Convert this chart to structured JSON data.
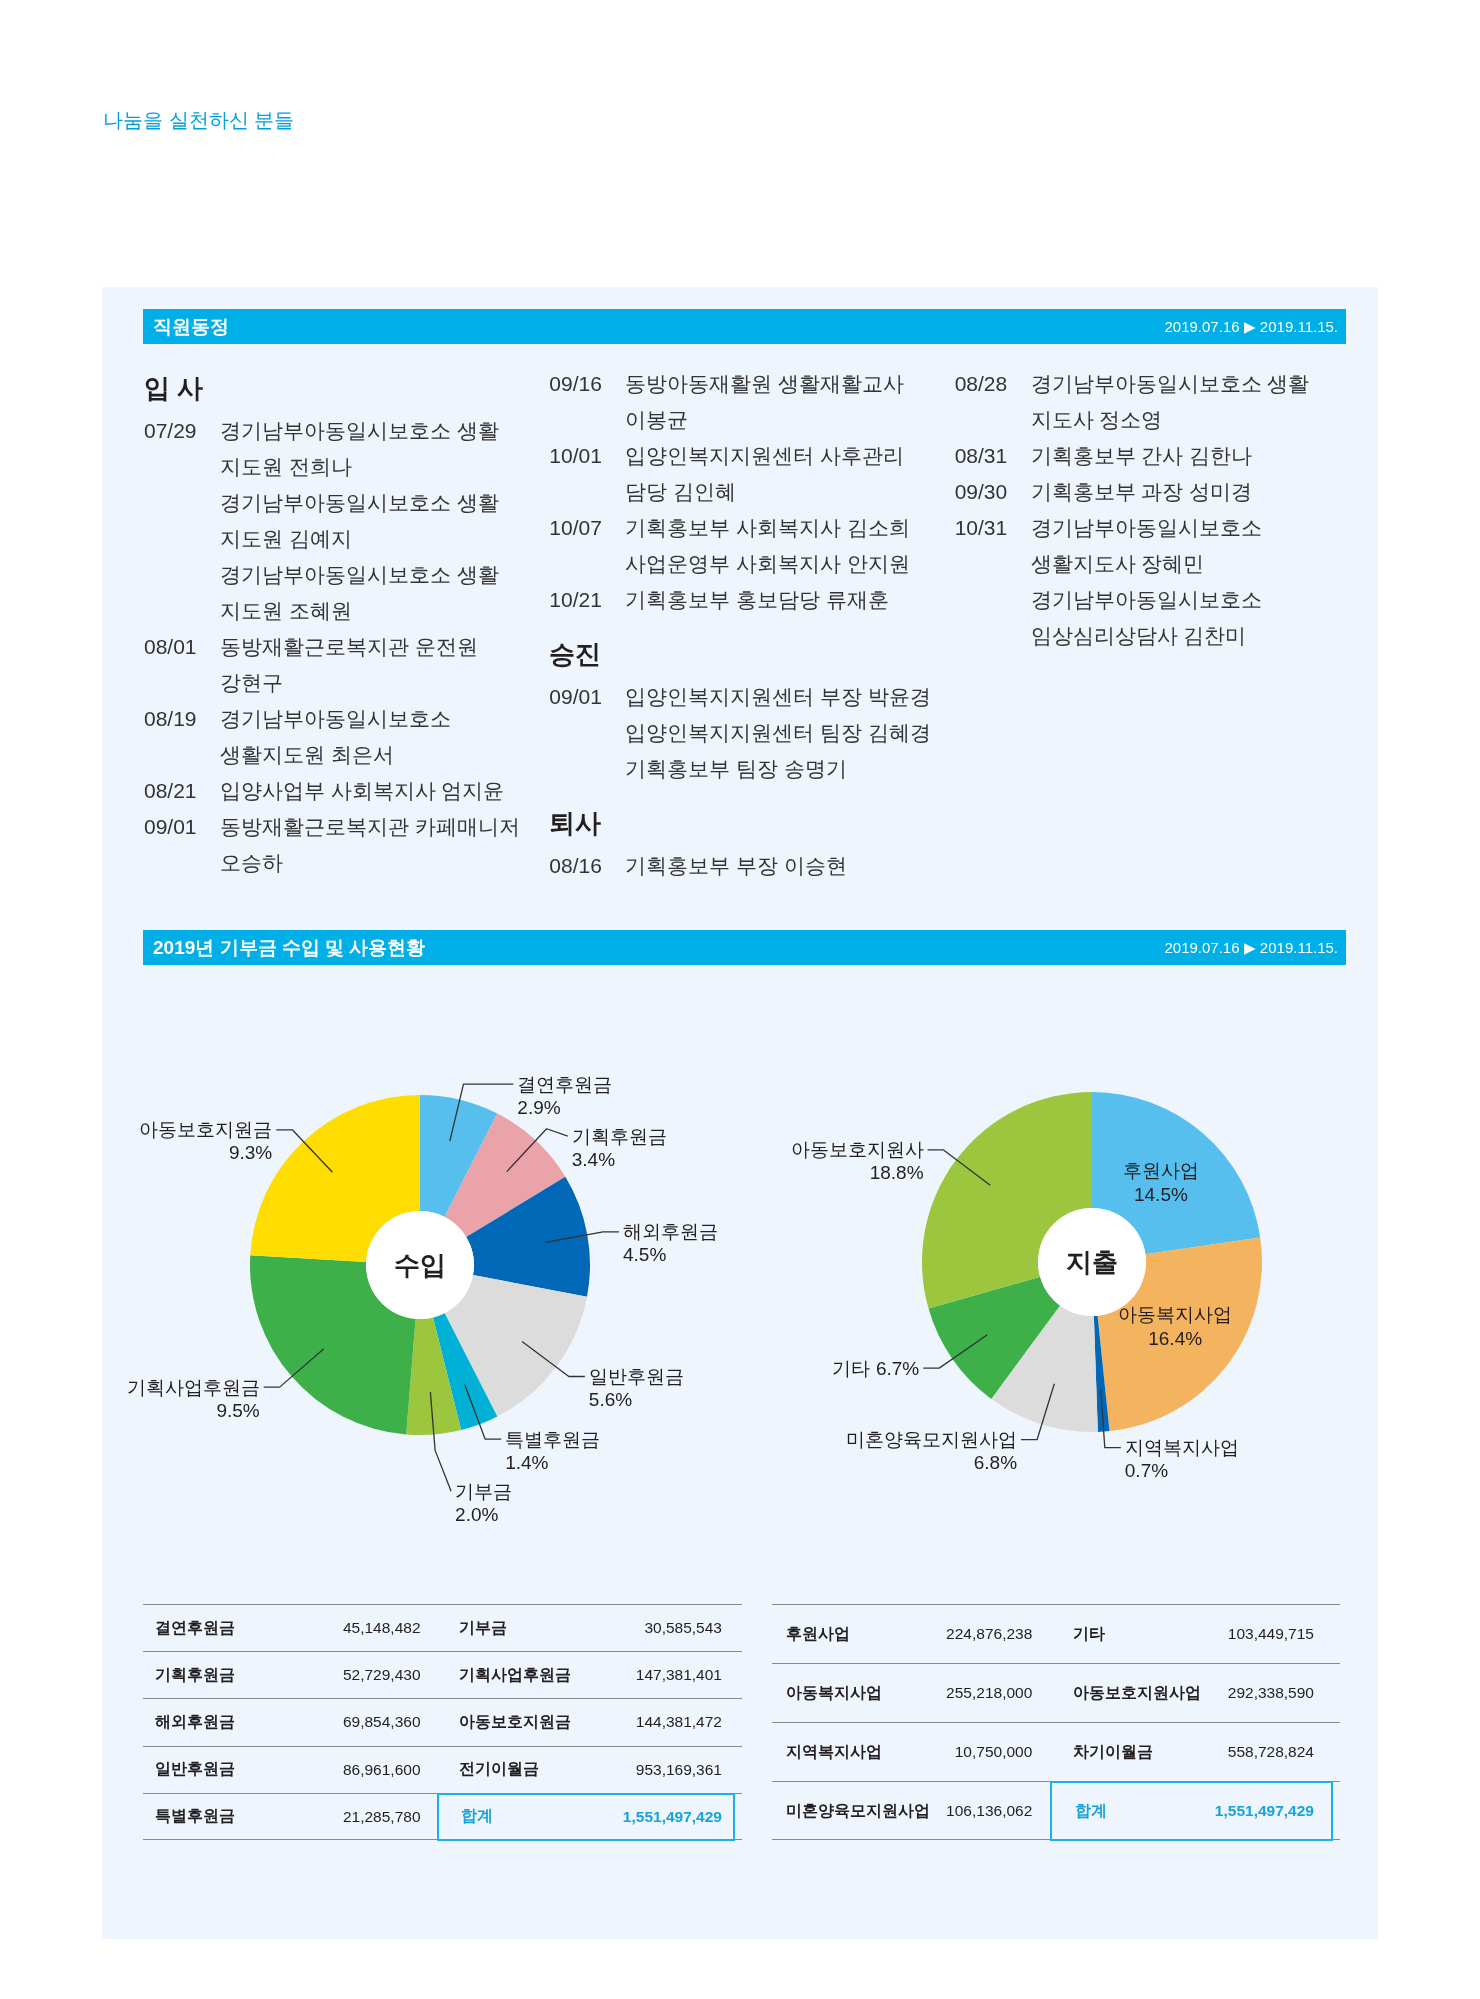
{
  "chart_data": [
    {
      "type": "other",
      "title": "나눔을 실천하신 분들"
    },
    {
      "type": "other",
      "title": "직원동정",
      "subtitle": "2019.07.16 ▶ 2019.11.15."
    },
    {
      "type": "other",
      "title": "입 사",
      "categories": [
        "07/29",
        null,
        null,
        "08/01",
        "08/19",
        "08/21",
        "09/01",
        "09/16",
        "10/01",
        "10/07",
        null,
        "10/21"
      ],
      "annotations": [
        "경기남부아동일시보호소 생활\n지도원 전희나",
        "경기남부아동일시보호소 생활\n지도원 김예지",
        "경기남부아동일시보호소 생활\n지도원 조혜원",
        "동방재활근로복지관 운전원\n강현구",
        "경기남부아동일시보호소\n생활지도원 최은서",
        "입양사업부 사회복지사 엄지윤",
        "동방재활근로복지관 카페매니저\n오승하",
        "동방아동재활원 생활재활교사\n이봉균",
        "입양인복지지원센터 사후관리\n담당 김인혜",
        "기획홍보부 사회복지사 김소희",
        "사업운영부 사회복지사 안지원",
        "기획홍보부 홍보담당 류재훈"
      ]
    },
    {
      "type": "other",
      "title": "승진",
      "categories": [
        "09/01",
        null,
        null
      ],
      "annotations": [
        "입양인복지지원센터 부장 박윤경",
        "입양인복지지원센터 팀장 김혜경",
        "기획홍보부 팀장 송명기"
      ]
    },
    {
      "type": "other",
      "title": "퇴사",
      "categories": [
        "08/16",
        "08/28",
        "08/31",
        "09/30",
        "10/31",
        null
      ],
      "annotations": [
        "기획홍보부 부장 이승현",
        "경기남부아동일시보호소 생활\n지도사 정소영",
        "기획홍보부 간사 김한나",
        "기획홍보부 과장 성미경",
        "경기남부아동일시보호소\n생활지도사 장혜민",
        "경기남부아동일시보호소\n임상심리상담사 김찬미"
      ]
    },
    {
      "type": "other",
      "title": "2019년 기부금 수입 및 사용현황",
      "subtitle": "2019.07.16 ▶ 2019.11.15."
    },
    {
      "type": "donut",
      "title": "수입",
      "categories": [
        "결연후원금",
        "기획후원금",
        "해외후원금",
        "일반후원금",
        "특별후원금",
        "기부금",
        "기획사업후원금",
        "아동보호지원금"
      ],
      "values": [
        2.9,
        3.4,
        4.5,
        5.6,
        1.4,
        2.0,
        9.5,
        9.3
      ],
      "colors": [
        "#56bfee",
        "#e9a3a9",
        "#0068b7",
        "#dcdcdc",
        "#00b1d5",
        "#9dc63f",
        "#3db049",
        "#ffdd00"
      ],
      "value_labels": [
        "2.9%",
        "3.4%",
        "4.5%",
        "5.6%",
        "1.4%",
        "2.0%",
        "9.5%",
        "9.3%"
      ]
    },
    {
      "type": "donut",
      "title": "지출",
      "categories": [
        "후원사업",
        "아동복지사업",
        "지역복지사업",
        "미혼양육모지원사업",
        "기타",
        "아동보호지원사"
      ],
      "values": [
        14.5,
        16.4,
        0.7,
        6.8,
        6.7,
        18.8
      ],
      "colors": [
        "#56bfee",
        "#f4b35e",
        "#0068b7",
        "#dcdcdc",
        "#3db049",
        "#9dc63f"
      ],
      "value_labels": [
        "14.5%",
        "16.4%",
        "0.7%",
        "6.8%",
        "6.7%",
        "18.8%"
      ]
    },
    {
      "type": "other",
      "categories": [
        "결연후원금",
        "기부금",
        "기획후원금",
        "기획사업후원금",
        "해외후원금",
        "아동보호지원금",
        "일반후원금",
        "전기이월금",
        "특별후원금",
        "합계"
      ],
      "annotations": [
        "45,148,482",
        "30,585,543",
        "52,729,430",
        "147,381,401",
        "69,854,360",
        "144,381,472",
        "86,961,600",
        "953,169,361",
        "21,285,780",
        "1,551,497,429"
      ]
    },
    {
      "type": "other",
      "categories": [
        "후원사업",
        "기타",
        "아동복지사업",
        "아동보호지원사업",
        "지역복지사업",
        "차기이월금",
        "미혼양육모지원사업",
        "합계"
      ],
      "annotations": [
        "224,876,238",
        "103,449,715",
        "255,218,000",
        "292,338,590",
        "10,750,000",
        "558,728,824",
        "106,136,062",
        "1,551,497,429"
      ]
    }
  ]
}
